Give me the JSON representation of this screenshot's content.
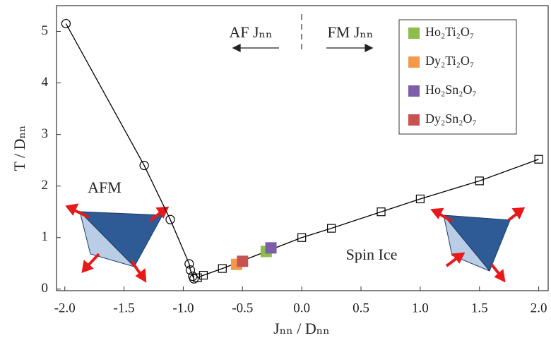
{
  "chart_data": {
    "type": "scatter",
    "x_label": "Jₙₙ / Dₙₙ",
    "y_label": "T / Dₙₙ",
    "xlim": [
      -2.07,
      2.08
    ],
    "ylim": [
      -0.03,
      5.5
    ],
    "xticks": [
      {
        "value": -2,
        "label": "-2.0"
      },
      -1.5,
      {
        "value": -1,
        "label": "-1.0"
      },
      -0.5,
      {
        "value": 0,
        "label": "0.0"
      },
      0.5,
      {
        "value": 1,
        "label": "1.0"
      },
      1.5,
      {
        "value": 2,
        "label": "2.0"
      }
    ],
    "yticks": [
      0,
      1,
      2,
      3,
      4,
      5
    ],
    "series": [
      {
        "marker": "circle",
        "line": true,
        "color": "#000000",
        "x": [
          -1.99,
          -1.33,
          -1.11,
          -0.95,
          -0.94,
          -0.92,
          -0.91
        ],
        "values": [
          5.15,
          2.4,
          1.35,
          0.49,
          0.37,
          0.25,
          0.2
        ]
      },
      {
        "marker": "square",
        "line": true,
        "color": "#000000",
        "x": [
          -0.88,
          -0.83,
          -0.67,
          0,
          0.25,
          0.67,
          1,
          1.5,
          2
        ],
        "values": [
          0.22,
          0.27,
          0.4,
          1,
          1.18,
          1.5,
          1.75,
          2.1,
          2.52
        ]
      },
      {
        "name": "Ho₂Ti₂O₇",
        "marker": "filled-square",
        "color": "#8cbd4d",
        "x": [
          -0.3
        ],
        "values": [
          0.73
        ]
      },
      {
        "name": "Dy₂Ti₂O₇",
        "marker": "filled-square",
        "color": "#f39a4a",
        "x": [
          -0.55
        ],
        "values": [
          0.48
        ]
      },
      {
        "name": "Ho₂Sn₂O₇",
        "marker": "filled-square",
        "color": "#7d5ea8",
        "x": [
          -0.26
        ],
        "values": [
          0.8
        ]
      },
      {
        "name": "Dy₂Sn₂O₇",
        "marker": "filled-square",
        "color": "#c8524f",
        "x": [
          -0.5
        ],
        "values": [
          0.54
        ]
      }
    ],
    "annotations": [
      "AF Jₙₙ",
      "FM Jₙₙ",
      "AFM",
      "Spin Ice"
    ]
  }
}
